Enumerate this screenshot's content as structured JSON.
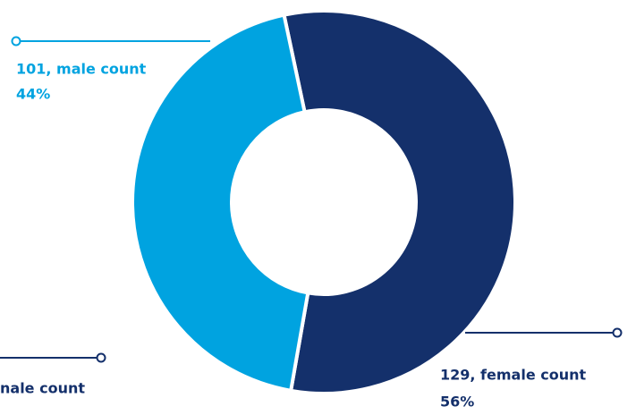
{
  "chart_data": {
    "type": "donut",
    "values": [
      129,
      101
    ],
    "value_labels": [
      "129, female count",
      "101, male count"
    ],
    "percents": [
      56,
      44
    ],
    "percent_labels": [
      "56%",
      "44%"
    ],
    "colors": [
      "#14306b",
      "#00a3e0"
    ],
    "annotations": [
      "nale count"
    ]
  }
}
